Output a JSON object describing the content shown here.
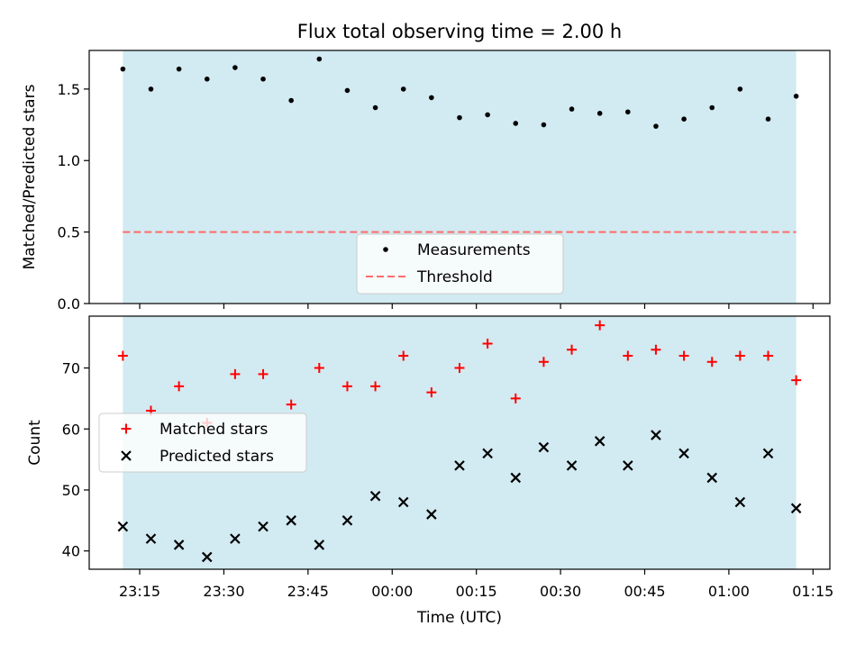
{
  "title": "Flux total observing time = 2.00 h",
  "colors": {
    "shade": "#add8e6",
    "measurement": "#000000",
    "threshold": "#ff6b6b",
    "matched": "#ff0000",
    "predicted": "#000000"
  },
  "chart_data": [
    {
      "type": "scatter",
      "ylabel": "Matched/Predicted stars",
      "ylim": [
        0.0,
        1.77
      ],
      "yticks": [
        0.0,
        0.5,
        1.0,
        1.5
      ],
      "ytick_labels": [
        "0.0",
        "0.5",
        "1.0",
        "1.5"
      ],
      "shaded_region": [
        "23:12",
        "01:12"
      ],
      "threshold": {
        "name": "Threshold",
        "value": 0.5,
        "style": "dashed"
      },
      "legend_placement": "lower-center",
      "series": [
        {
          "name": "Measurements",
          "marker": "dot",
          "points": [
            [
              "23:12",
              1.64
            ],
            [
              "23:17",
              1.5
            ],
            [
              "23:22",
              1.64
            ],
            [
              "23:27",
              1.57
            ],
            [
              "23:32",
              1.65
            ],
            [
              "23:37",
              1.57
            ],
            [
              "23:42",
              1.42
            ],
            [
              "23:47",
              1.71
            ],
            [
              "23:52",
              1.49
            ],
            [
              "23:57",
              1.37
            ],
            [
              "00:02",
              1.5
            ],
            [
              "00:07",
              1.44
            ],
            [
              "00:12",
              1.3
            ],
            [
              "00:17",
              1.32
            ],
            [
              "00:22",
              1.26
            ],
            [
              "00:27",
              1.25
            ],
            [
              "00:32",
              1.36
            ],
            [
              "00:37",
              1.33
            ],
            [
              "00:42",
              1.34
            ],
            [
              "00:47",
              1.24
            ],
            [
              "00:52",
              1.29
            ],
            [
              "00:57",
              1.37
            ],
            [
              "01:02",
              1.5
            ],
            [
              "01:07",
              1.29
            ],
            [
              "01:12",
              1.45
            ]
          ]
        }
      ]
    },
    {
      "type": "scatter",
      "xlabel": "Time (UTC)",
      "ylabel": "Count",
      "ylim": [
        37,
        78.5
      ],
      "yticks": [
        40,
        50,
        60,
        70
      ],
      "ytick_labels": [
        "40",
        "50",
        "60",
        "70"
      ],
      "xlim": [
        "23:06",
        "01:18"
      ],
      "xticks": [
        "23:15",
        "23:30",
        "23:45",
        "00:00",
        "00:15",
        "00:30",
        "00:45",
        "01:00",
        "01:15"
      ],
      "shaded_region": [
        "23:12",
        "01:12"
      ],
      "legend_placement": "center-left",
      "series": [
        {
          "name": "Matched stars",
          "marker": "plus",
          "points": [
            [
              "23:12",
              72
            ],
            [
              "23:17",
              63
            ],
            [
              "23:22",
              67
            ],
            [
              "23:27",
              61
            ],
            [
              "23:32",
              69
            ],
            [
              "23:37",
              69
            ],
            [
              "23:42",
              64
            ],
            [
              "23:47",
              70
            ],
            [
              "23:52",
              67
            ],
            [
              "23:57",
              67
            ],
            [
              "00:02",
              72
            ],
            [
              "00:07",
              66
            ],
            [
              "00:12",
              70
            ],
            [
              "00:17",
              74
            ],
            [
              "00:22",
              65
            ],
            [
              "00:27",
              71
            ],
            [
              "00:32",
              73
            ],
            [
              "00:37",
              77
            ],
            [
              "00:42",
              72
            ],
            [
              "00:47",
              73
            ],
            [
              "00:52",
              72
            ],
            [
              "00:57",
              71
            ],
            [
              "01:02",
              72
            ],
            [
              "01:07",
              72
            ],
            [
              "01:12",
              68
            ]
          ]
        },
        {
          "name": "Predicted stars",
          "marker": "x",
          "points": [
            [
              "23:12",
              44
            ],
            [
              "23:17",
              42
            ],
            [
              "23:22",
              41
            ],
            [
              "23:27",
              39
            ],
            [
              "23:32",
              42
            ],
            [
              "23:37",
              44
            ],
            [
              "23:42",
              45
            ],
            [
              "23:47",
              41
            ],
            [
              "23:52",
              45
            ],
            [
              "23:57",
              49
            ],
            [
              "00:02",
              48
            ],
            [
              "00:07",
              46
            ],
            [
              "00:12",
              54
            ],
            [
              "00:17",
              56
            ],
            [
              "00:22",
              52
            ],
            [
              "00:27",
              57
            ],
            [
              "00:32",
              54
            ],
            [
              "00:37",
              58
            ],
            [
              "00:42",
              54
            ],
            [
              "00:47",
              59
            ],
            [
              "00:52",
              56
            ],
            [
              "00:57",
              52
            ],
            [
              "01:02",
              48
            ],
            [
              "01:07",
              56
            ],
            [
              "01:12",
              47
            ]
          ]
        }
      ]
    }
  ]
}
